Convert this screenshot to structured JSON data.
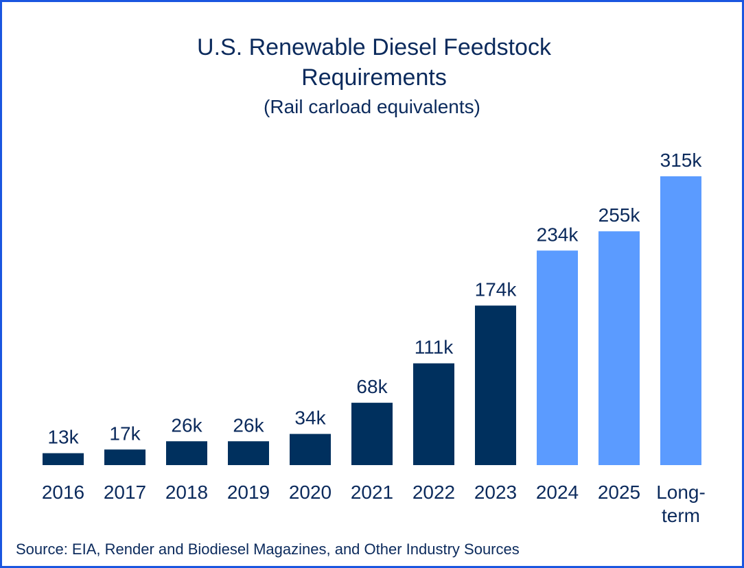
{
  "chart_data": {
    "type": "bar",
    "title": "U.S. Renewable Diesel Feedstock Requirements",
    "subtitle": "(Rail carload equivalents)",
    "categories": [
      "2016",
      "2017",
      "2018",
      "2019",
      "2020",
      "2021",
      "2022",
      "2023",
      "2024",
      "2025",
      "Long-term"
    ],
    "values": [
      13000,
      17000,
      26000,
      26000,
      34000,
      68000,
      111000,
      174000,
      234000,
      255000,
      315000
    ],
    "value_labels": [
      "13k",
      "17k",
      "26k",
      "26k",
      "34k",
      "68k",
      "111k",
      "174k",
      "234k",
      "255k",
      "315k"
    ],
    "colors": [
      "#00305e",
      "#00305e",
      "#00305e",
      "#00305e",
      "#00305e",
      "#00305e",
      "#00305e",
      "#00305e",
      "#5b9bff",
      "#5b9bff",
      "#5b9bff"
    ],
    "source": "Source: EIA, Render and Biodiesel Magazines, and Other Industry Sources"
  }
}
